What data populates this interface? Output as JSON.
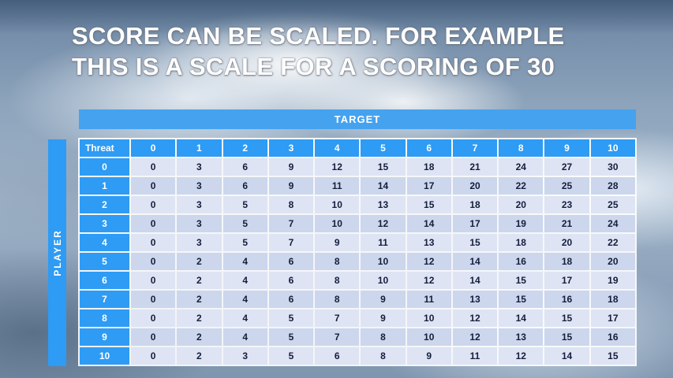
{
  "slide": {
    "title_line1": "SCORE CAN BE SCALED. FOR EXAMPLE",
    "title_line2": "THIS IS A SCALE FOR A SCORING OF 30"
  },
  "table": {
    "target_label": "TARGET",
    "player_label": "PLAYER",
    "corner_label": "Threat",
    "col_headers": [
      "0",
      "1",
      "2",
      "3",
      "4",
      "5",
      "6",
      "7",
      "8",
      "9",
      "10"
    ],
    "rows": [
      {
        "label": "0",
        "values": [
          0,
          3,
          6,
          9,
          12,
          15,
          18,
          21,
          24,
          27,
          30
        ]
      },
      {
        "label": "1",
        "values": [
          0,
          3,
          6,
          9,
          11,
          14,
          17,
          20,
          22,
          25,
          28
        ]
      },
      {
        "label": "2",
        "values": [
          0,
          3,
          5,
          8,
          10,
          13,
          15,
          18,
          20,
          23,
          25
        ]
      },
      {
        "label": "3",
        "values": [
          0,
          3,
          5,
          7,
          10,
          12,
          14,
          17,
          19,
          21,
          24
        ]
      },
      {
        "label": "4",
        "values": [
          0,
          3,
          5,
          7,
          9,
          11,
          13,
          15,
          18,
          20,
          22
        ]
      },
      {
        "label": "5",
        "values": [
          0,
          2,
          4,
          6,
          8,
          10,
          12,
          14,
          16,
          18,
          20
        ]
      },
      {
        "label": "6",
        "values": [
          0,
          2,
          4,
          6,
          8,
          10,
          12,
          14,
          15,
          17,
          19
        ]
      },
      {
        "label": "7",
        "values": [
          0,
          2,
          4,
          6,
          8,
          9,
          11,
          13,
          15,
          16,
          18
        ]
      },
      {
        "label": "8",
        "values": [
          0,
          2,
          4,
          5,
          7,
          9,
          10,
          12,
          14,
          15,
          17
        ]
      },
      {
        "label": "9",
        "values": [
          0,
          2,
          4,
          5,
          7,
          8,
          10,
          12,
          13,
          15,
          16
        ]
      },
      {
        "label": "10",
        "values": [
          0,
          2,
          3,
          5,
          6,
          8,
          9,
          11,
          12,
          14,
          15
        ]
      }
    ]
  },
  "colors": {
    "header_blue": "#2e9bf4",
    "target_blue": "#45a2ef",
    "band_light": "#dee4f3",
    "band_dark": "#ccd6ec",
    "cell_text": "#141e3c"
  }
}
